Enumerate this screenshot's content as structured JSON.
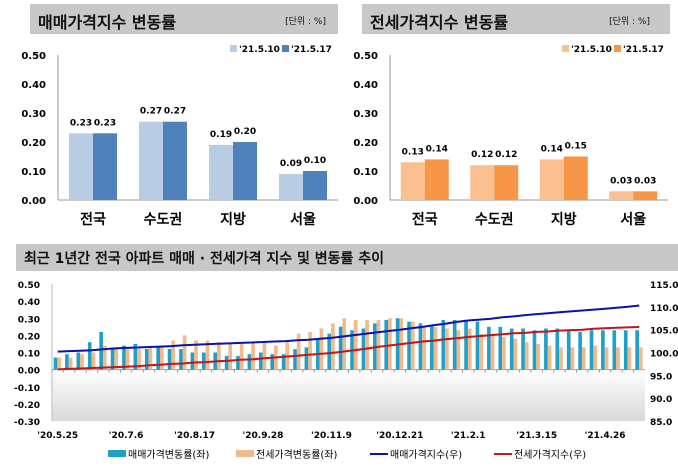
{
  "chart_data": [
    {
      "type": "bar",
      "title": "매매가격지수 변동률",
      "unit": "[단위 : %]",
      "categories": [
        "전국",
        "수도권",
        "지방",
        "서울"
      ],
      "series": [
        {
          "name": "'21.5.10",
          "values": [
            0.23,
            0.27,
            0.19,
            0.09
          ],
          "color": "#b8cce4"
        },
        {
          "name": "'21.5.17",
          "values": [
            0.23,
            0.27,
            0.2,
            0.1
          ],
          "color": "#4f81bd"
        }
      ],
      "ylim": [
        0,
        0.5
      ],
      "yticks": [
        "0.00",
        "0.10",
        "0.20",
        "0.30",
        "0.40",
        "0.50"
      ],
      "legend": "top-right"
    },
    {
      "type": "bar",
      "title": "전세가격지수 변동률",
      "unit": "[단위 : %]",
      "categories": [
        "전국",
        "수도권",
        "지방",
        "서울"
      ],
      "series": [
        {
          "name": "'21.5.10",
          "values": [
            0.13,
            0.12,
            0.14,
            0.03
          ],
          "color": "#fac090"
        },
        {
          "name": "'21.5.17",
          "values": [
            0.14,
            0.12,
            0.15,
            0.03
          ],
          "color": "#f79646"
        }
      ],
      "ylim": [
        0,
        0.5
      ],
      "yticks": [
        "0.00",
        "0.10",
        "0.20",
        "0.30",
        "0.40",
        "0.50"
      ],
      "legend": "top-right"
    },
    {
      "type": "bar+line",
      "title": "최근 1년간 전국 아파트 매매 · 전세가격 지수 및 변동률 추이",
      "xticks": [
        "'20.5.25",
        "'20.7.6",
        "'20.8.17",
        "'20.9.28",
        "'20.11.9",
        "'20.12.21",
        "'21.2.1",
        "'21.3.15",
        "'21.4.26"
      ],
      "ylim_left": [
        -0.3,
        0.5
      ],
      "yticks_left": [
        "0.50",
        "0.40",
        "0.30",
        "0.20",
        "0.10",
        "0.00",
        "-0.10",
        "-0.20",
        "-0.30"
      ],
      "ylim_right": [
        85,
        115
      ],
      "yticks_right": [
        "115.0",
        "110.0",
        "105.0",
        "100.0",
        "95.0",
        "90.0",
        "85.0"
      ],
      "legend": "bottom",
      "series": [
        {
          "name": "매매가격변동률(좌)",
          "kind": "bar",
          "axis": "left",
          "color": "#1fa0c8",
          "values": [
            0.07,
            0.09,
            0.1,
            0.16,
            0.22,
            0.12,
            0.14,
            0.15,
            0.12,
            0.13,
            0.12,
            0.12,
            0.1,
            0.1,
            0.1,
            0.08,
            0.08,
            0.09,
            0.1,
            0.09,
            0.09,
            0.12,
            0.13,
            0.18,
            0.21,
            0.25,
            0.23,
            0.24,
            0.27,
            0.29,
            0.3,
            0.28,
            0.27,
            0.26,
            0.29,
            0.29,
            0.29,
            0.28,
            0.25,
            0.25,
            0.24,
            0.24,
            0.23,
            0.24,
            0.24,
            0.23,
            0.22,
            0.23,
            0.23,
            0.23,
            0.23,
            0.23
          ]
        },
        {
          "name": "전세가격변동률(좌)",
          "kind": "bar",
          "axis": "left",
          "color": "#f2b98a",
          "values": [
            0.07,
            0.07,
            0.09,
            0.1,
            0.14,
            0.12,
            0.12,
            0.12,
            0.13,
            0.14,
            0.17,
            0.2,
            0.17,
            0.17,
            0.16,
            0.15,
            0.16,
            0.16,
            0.16,
            0.14,
            0.16,
            0.21,
            0.22,
            0.24,
            0.27,
            0.3,
            0.29,
            0.29,
            0.29,
            0.3,
            0.3,
            0.28,
            0.25,
            0.25,
            0.24,
            0.23,
            0.24,
            0.21,
            0.21,
            0.19,
            0.18,
            0.16,
            0.15,
            0.14,
            0.13,
            0.13,
            0.13,
            0.14,
            0.13,
            0.13,
            0.13,
            0.13
          ]
        },
        {
          "name": "매매가격지수(우)",
          "kind": "line",
          "axis": "right",
          "color": "#0a14a0",
          "values": [
            100.2,
            100.3,
            100.4,
            100.5,
            100.7,
            100.9,
            101.0,
            101.1,
            101.2,
            101.3,
            101.4,
            101.6,
            101.7,
            101.8,
            101.9,
            102.0,
            102.1,
            102.2,
            102.3,
            102.4,
            102.5,
            102.7,
            102.8,
            103.0,
            103.2,
            103.5,
            103.8,
            104.1,
            104.4,
            104.7,
            105.0,
            105.3,
            105.6,
            106.0,
            106.3,
            106.7,
            107.0,
            107.2,
            107.4,
            107.7,
            107.9,
            108.2,
            108.4,
            108.6,
            108.8,
            109.0,
            109.2,
            109.4,
            109.6,
            109.8,
            110.0,
            110.3
          ]
        },
        {
          "name": "전세가격지수(우)",
          "kind": "line",
          "axis": "right",
          "color": "#c0161c",
          "values": [
            96.3,
            96.4,
            96.5,
            96.6,
            96.7,
            96.8,
            96.9,
            97.0,
            97.2,
            97.3,
            97.5,
            97.6,
            97.8,
            97.9,
            98.1,
            98.2,
            98.4,
            98.5,
            98.7,
            98.9,
            99.1,
            99.3,
            99.5,
            99.7,
            99.9,
            100.2,
            100.5,
            100.8,
            101.2,
            101.5,
            101.8,
            102.1,
            102.4,
            102.6,
            102.9,
            103.1,
            103.4,
            103.6,
            103.8,
            104.0,
            104.2,
            104.3,
            104.5,
            104.6,
            104.8,
            104.9,
            105.0,
            105.2,
            105.3,
            105.4,
            105.5,
            105.6
          ]
        }
      ]
    }
  ]
}
